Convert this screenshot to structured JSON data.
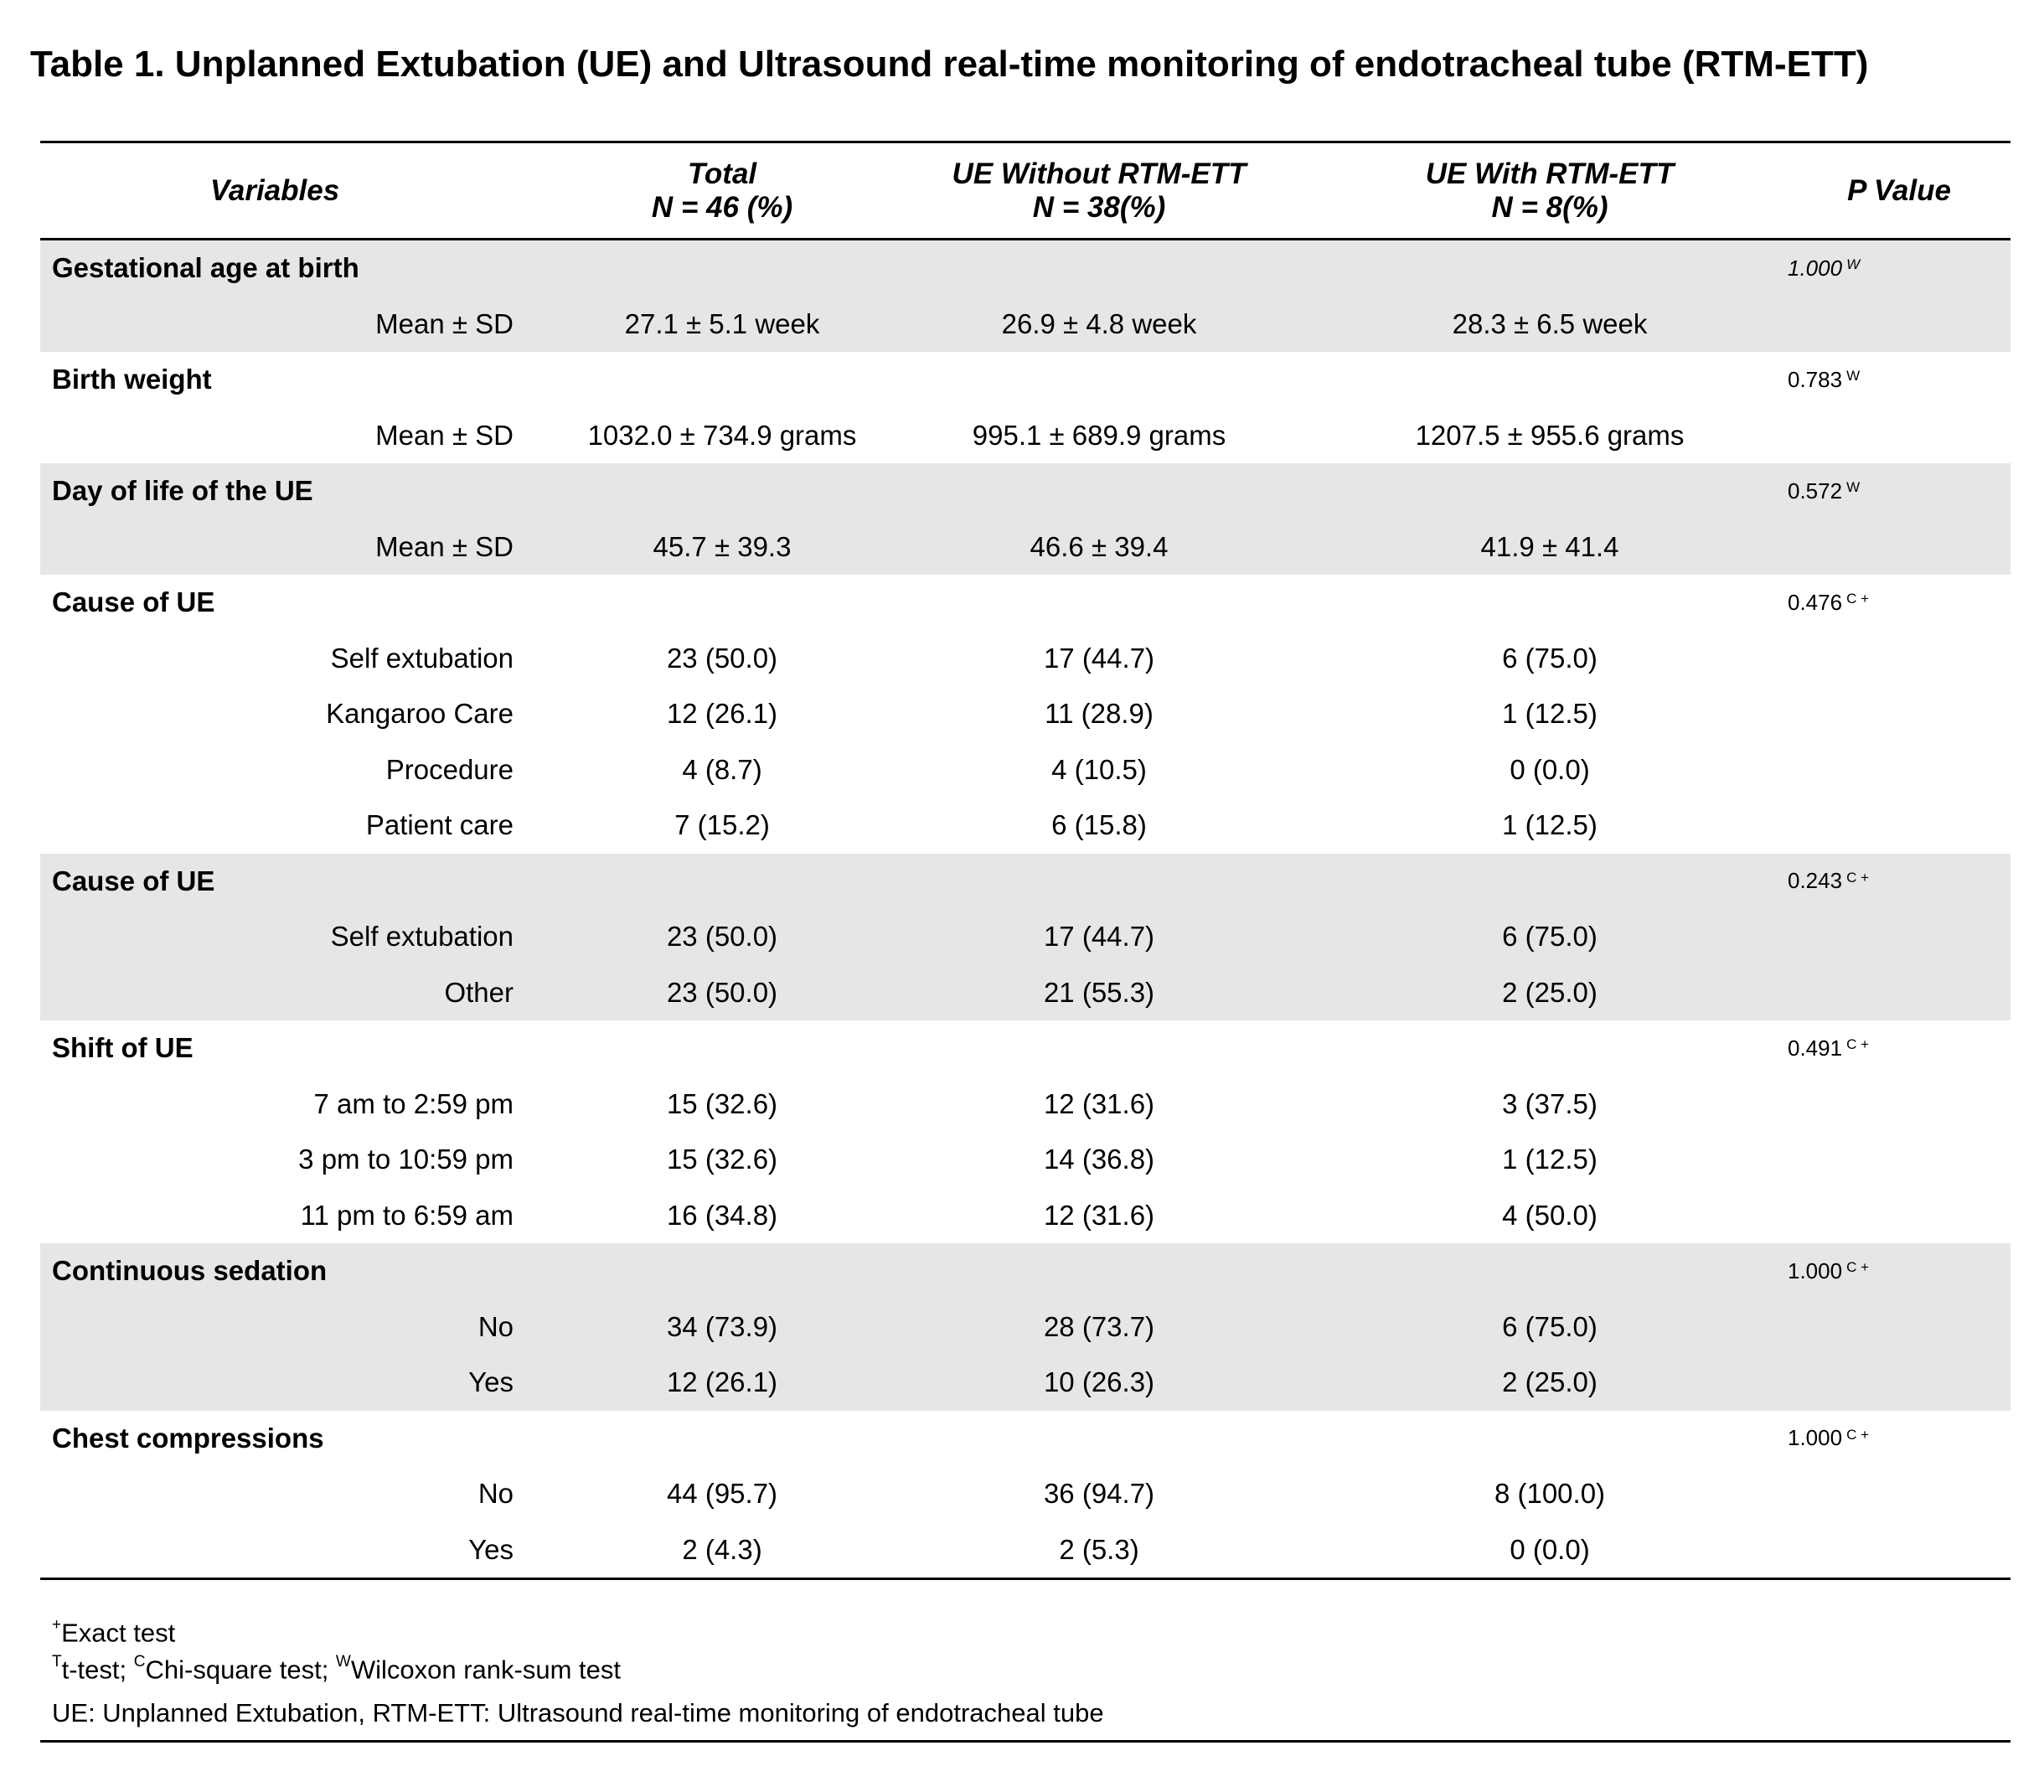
{
  "title": "Table 1. Unplanned Extubation (UE) and Ultrasound real-time monitoring of endotracheal tube (RTM-ETT)",
  "headers": {
    "variables": "Variables",
    "total_line1": "Total",
    "total_line2": "N = 46 (%)",
    "without_line1": "UE Without RTM-ETT",
    "without_line2": "N = 38(%)",
    "with_line1": "UE With RTM-ETT",
    "with_line2": "N = 8(%)",
    "pvalue": "P Value"
  },
  "groups": [
    {
      "label": "Gestational age at birth",
      "p": "1.000",
      "p_sup": "W",
      "rows": [
        {
          "sub": "Mean ± SD",
          "total": "27.1 ± 5.1 week",
          "without": "26.9 ± 4.8 week",
          "with": "28.3 ± 6.5 week"
        }
      ]
    },
    {
      "label": "Birth weight",
      "p": "0.783",
      "p_sup": "W",
      "rows": [
        {
          "sub": "Mean ± SD",
          "total": "1032.0 ± 734.9 grams",
          "without": "995.1 ± 689.9 grams",
          "with": "1207.5 ± 955.6 grams"
        }
      ]
    },
    {
      "label": "Day of life of the UE",
      "p": "0.572",
      "p_sup": "W",
      "rows": [
        {
          "sub": "Mean ± SD",
          "total": "45.7 ± 39.3",
          "without": "46.6 ± 39.4",
          "with": "41.9 ± 41.4"
        }
      ]
    },
    {
      "label": "Cause of UE",
      "p": "0.476",
      "p_sup": "C +",
      "rows": [
        {
          "sub": "Self extubation",
          "total": "23 (50.0)",
          "without": "17 (44.7)",
          "with": "6 (75.0)"
        },
        {
          "sub": "Kangaroo Care",
          "total": "12 (26.1)",
          "without": "11 (28.9)",
          "with": "1 (12.5)"
        },
        {
          "sub": "Procedure",
          "total": "4 (8.7)",
          "without": "4 (10.5)",
          "with": "0 (0.0)"
        },
        {
          "sub": "Patient care",
          "total": "7 (15.2)",
          "without": "6 (15.8)",
          "with": "1 (12.5)"
        }
      ]
    },
    {
      "label": "Cause of UE",
      "p": "0.243",
      "p_sup": "C +",
      "rows": [
        {
          "sub": "Self extubation",
          "total": "23 (50.0)",
          "without": "17 (44.7)",
          "with": "6 (75.0)"
        },
        {
          "sub": "Other",
          "total": "23 (50.0)",
          "without": "21 (55.3)",
          "with": "2 (25.0)"
        }
      ]
    },
    {
      "label": "Shift of UE",
      "p": "0.491",
      "p_sup": "C +",
      "rows": [
        {
          "sub": "7 am to 2:59 pm",
          "total": "15 (32.6)",
          "without": "12 (31.6)",
          "with": "3 (37.5)"
        },
        {
          "sub": "3 pm to 10:59 pm",
          "total": "15 (32.6)",
          "without": "14 (36.8)",
          "with": "1 (12.5)"
        },
        {
          "sub": "11 pm to 6:59 am",
          "total": "16 (34.8)",
          "without": "12 (31.6)",
          "with": "4 (50.0)"
        }
      ]
    },
    {
      "label": "Continuous sedation",
      "p": "1.000",
      "p_sup": "C +",
      "rows": [
        {
          "sub": "No",
          "total": "34 (73.9)",
          "without": "28 (73.7)",
          "with": "6 (75.0)"
        },
        {
          "sub": "Yes",
          "total": "12 (26.1)",
          "without": "10 (26.3)",
          "with": "2 (25.0)"
        }
      ]
    },
    {
      "label": "Chest compressions",
      "p": "1.000",
      "p_sup": "C +",
      "rows": [
        {
          "sub": "No",
          "total": "44 (95.7)",
          "without": "36 (94.7)",
          "with": "8 (100.0)"
        },
        {
          "sub": "Yes",
          "total": "2 (4.3)",
          "without": "2 (5.3)",
          "with": "0 (0.0)"
        }
      ]
    }
  ],
  "notes": {
    "exact_sup": "+",
    "exact_text": "Exact test",
    "t_sup": "T",
    "t_text": "t-test; ",
    "c_sup": "C",
    "c_text": "Chi-square test; ",
    "w_sup": "W",
    "w_text": "Wilcoxon rank-sum test",
    "abbrev": "UE: Unplanned Extubation, RTM-ETT: Ultrasound real-time monitoring of endotracheal tube"
  }
}
